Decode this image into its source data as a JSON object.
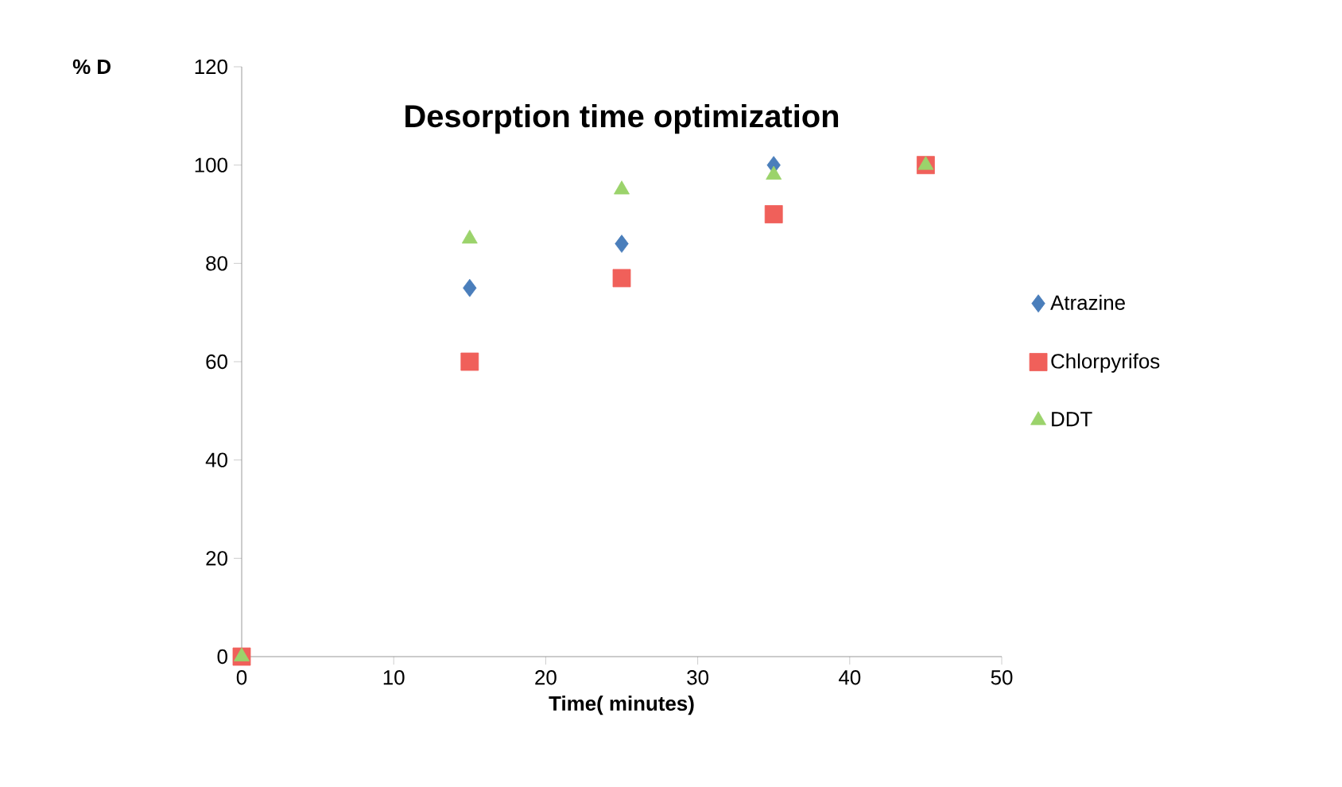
{
  "chart_data": {
    "type": "scatter",
    "title": "Desorption time optimization",
    "xlabel": "Time( minutes)",
    "ylabel": "% D",
    "x": [
      0,
      15,
      25,
      35,
      45
    ],
    "series": [
      {
        "name": "Atrazine",
        "color": "#4a7ebb",
        "marker": "diamond",
        "values": [
          null,
          75,
          84,
          100,
          null
        ]
      },
      {
        "name": "Chlorpyrifos",
        "color": "#f0605a",
        "marker": "square",
        "values": [
          0,
          60,
          77,
          90,
          100
        ]
      },
      {
        "name": "DDT",
        "color": "#9bd36b",
        "marker": "triangle",
        "values": [
          0,
          85,
          95,
          98,
          100
        ]
      }
    ],
    "xlim": [
      0,
      50
    ],
    "xticks": [
      0,
      10,
      20,
      30,
      40,
      50
    ],
    "ylim": [
      0,
      120
    ],
    "yticks": [
      0,
      20,
      40,
      60,
      80,
      100,
      120
    ],
    "grid": false,
    "legend": "right"
  }
}
